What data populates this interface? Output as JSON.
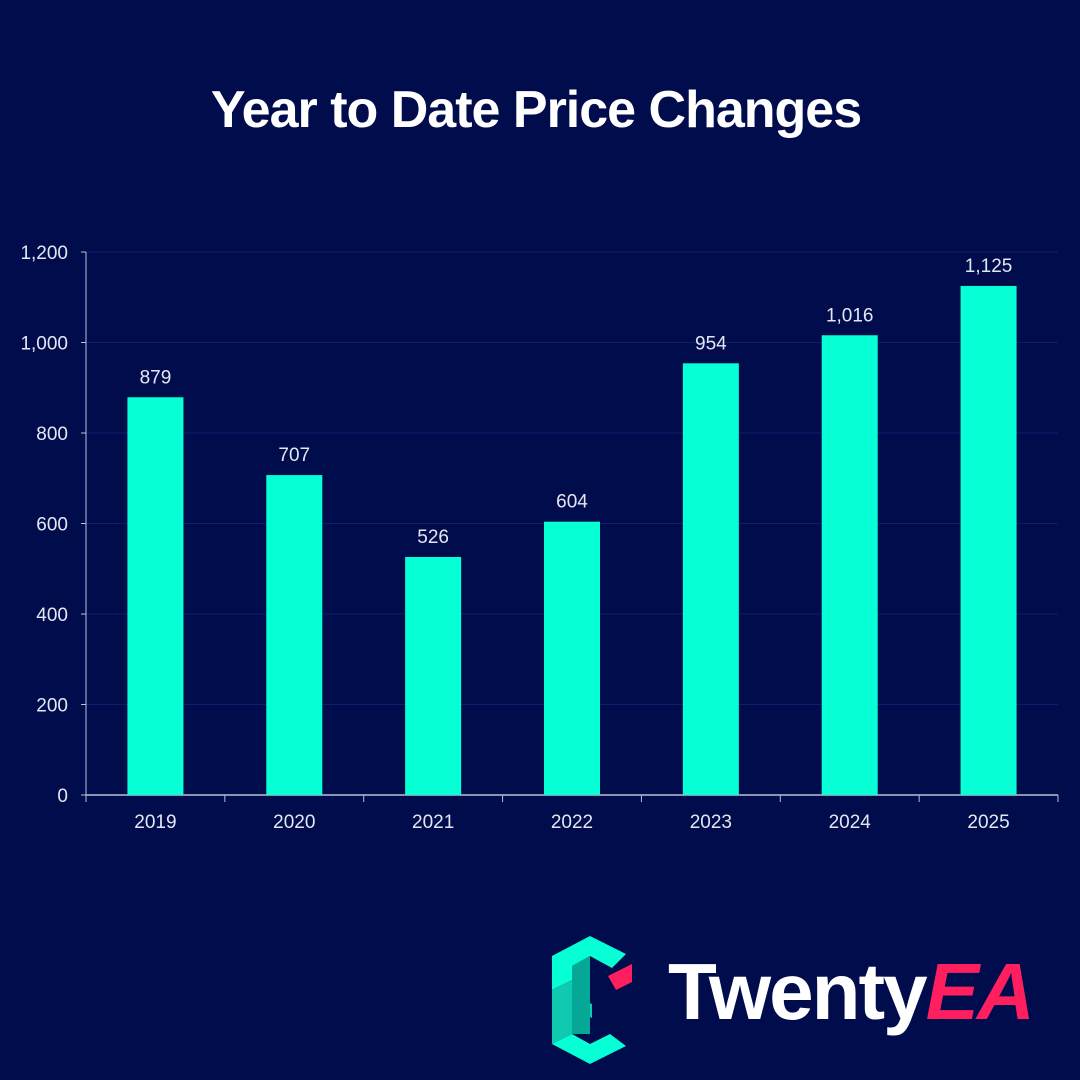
{
  "colors": {
    "background": "#000c4c",
    "bar": "#06ffd4",
    "grid": "#0f1d6e",
    "axis": "#b8bfd8",
    "text": "#ffffff",
    "brand_pink": "#ff1f5e"
  },
  "chart_data": {
    "type": "bar",
    "title": "Year to Date Price Changes",
    "categories": [
      "2019",
      "2020",
      "2021",
      "2022",
      "2023",
      "2024",
      "2025"
    ],
    "values": [
      879,
      707,
      526,
      604,
      954,
      1016,
      1125
    ],
    "value_labels": [
      "879",
      "707",
      "526",
      "604",
      "954",
      "1,016",
      "1,125"
    ],
    "y_ticks": [
      0,
      200,
      400,
      600,
      800,
      1000,
      1200
    ],
    "y_tick_labels": [
      "0",
      "200",
      "400",
      "600",
      "800",
      "1,000",
      "1,200"
    ],
    "ylim": [
      0,
      1200
    ],
    "xlabel": "",
    "ylabel": "",
    "grid": true,
    "legend": "none"
  },
  "brand": {
    "name_part1": "Twenty",
    "name_part2": "EA",
    "logo_icon": "twentyea-e-logo-icon"
  }
}
